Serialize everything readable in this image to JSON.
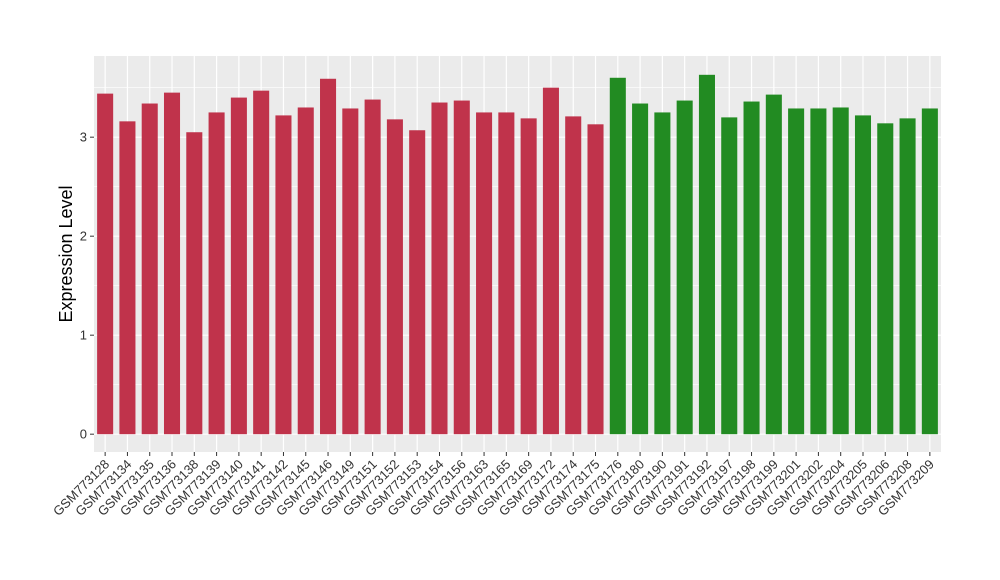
{
  "chart_data": {
    "type": "bar",
    "title": "",
    "xlabel": "",
    "ylabel": "Expression Level",
    "ylim": [
      -0.18,
      3.82
    ],
    "yticks": [
      0,
      1,
      2,
      3
    ],
    "grid": true,
    "legend": "none",
    "colors": {
      "panel": "#EBEBEB",
      "grid": "#FFFFFF",
      "group_1": "#C0334B",
      "group_2": "#228B22"
    },
    "categories": [
      "GSM773128",
      "GSM773134",
      "GSM773135",
      "GSM773136",
      "GSM773138",
      "GSM773139",
      "GSM773140",
      "GSM773141",
      "GSM773142",
      "GSM773145",
      "GSM773146",
      "GSM773149",
      "GSM773151",
      "GSM773152",
      "GSM773153",
      "GSM773154",
      "GSM773156",
      "GSM773163",
      "GSM773165",
      "GSM773169",
      "GSM773172",
      "GSM773174",
      "GSM773175",
      "GSM773176",
      "GSM773180",
      "GSM773190",
      "GSM773191",
      "GSM773192",
      "GSM773197",
      "GSM773198",
      "GSM773199",
      "GSM773201",
      "GSM773202",
      "GSM773204",
      "GSM773205",
      "GSM773206",
      "GSM773208",
      "GSM773209"
    ],
    "values": [
      3.44,
      3.16,
      3.34,
      3.45,
      3.05,
      3.25,
      3.4,
      3.47,
      3.22,
      3.3,
      3.59,
      3.29,
      3.38,
      3.18,
      3.07,
      3.35,
      3.37,
      3.25,
      3.25,
      3.19,
      3.5,
      3.21,
      3.13,
      3.6,
      3.34,
      3.25,
      3.37,
      3.63,
      3.2,
      3.36,
      3.43,
      3.29,
      3.29,
      3.3,
      3.22,
      3.14,
      3.19,
      3.29
    ],
    "groups": [
      1,
      1,
      1,
      1,
      1,
      1,
      1,
      1,
      1,
      1,
      1,
      1,
      1,
      1,
      1,
      1,
      1,
      1,
      1,
      1,
      1,
      1,
      1,
      2,
      2,
      2,
      2,
      2,
      2,
      2,
      2,
      2,
      2,
      2,
      2,
      2,
      2,
      2
    ]
  }
}
